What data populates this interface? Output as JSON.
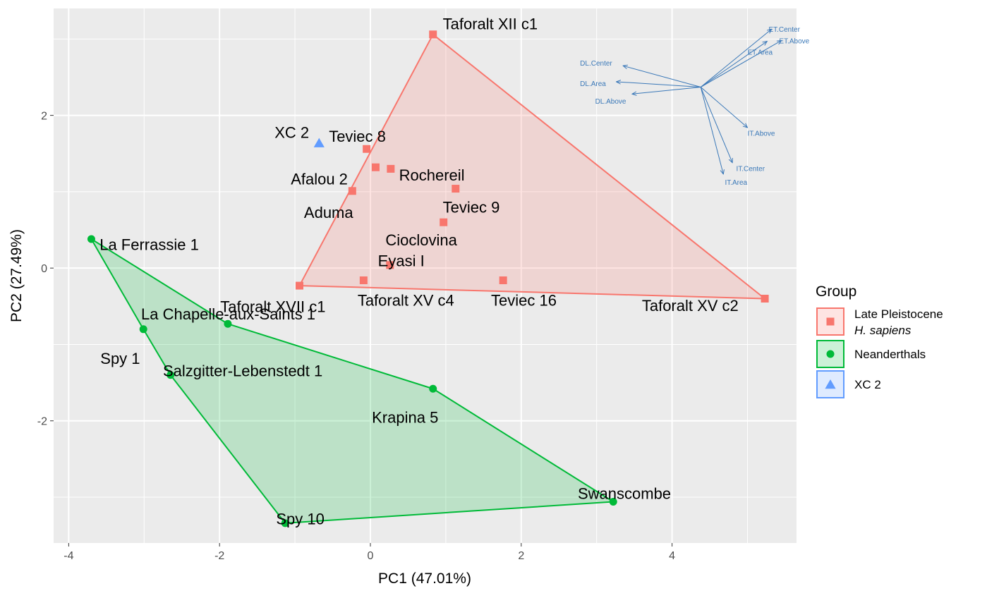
{
  "chart_data": {
    "type": "scatter",
    "title": "",
    "xlabel": "PC1 (47.01%)",
    "ylabel": "PC2 (27.49%)",
    "xlim": [
      -4.2,
      5.65
    ],
    "ylim": [
      -3.6,
      3.4
    ],
    "x_ticks": [
      -4,
      -2,
      0,
      2,
      4
    ],
    "x_tick_labels": [
      "-4",
      "-2",
      "0",
      "2",
      "4"
    ],
    "y_ticks": [
      -2,
      0,
      2
    ],
    "y_tick_labels": [
      "-2",
      "0",
      "2"
    ],
    "grid": true,
    "legend_position": "right",
    "colors": {
      "panel": "#ebebeb",
      "grid": "#ffffff",
      "sapiens": "#f8766d",
      "neanderthal": "#00ba38",
      "xc2": "#619cff",
      "loading": "#3a78b8"
    },
    "legend": {
      "title": "Group",
      "entries": [
        {
          "group": "sapiens",
          "line1": "Late Pleistocene",
          "line2": "H. sapiens",
          "shape": "square"
        },
        {
          "group": "neanderthal",
          "line1": "Neanderthals",
          "line2": "",
          "shape": "circle"
        },
        {
          "group": "xc2",
          "line1": "XC 2",
          "line2": "",
          "shape": "triangle"
        }
      ]
    },
    "series": [
      {
        "group": "sapiens",
        "shape": "square",
        "points": [
          {
            "x": 0.83,
            "y": 3.06,
            "label": "Taforalt XII c1",
            "lx": 0.96,
            "ly": 3.2,
            "anchor": "start"
          },
          {
            "x": -0.05,
            "y": 1.56,
            "label": "Teviec 8",
            "lx": -0.55,
            "ly": 1.73,
            "anchor": "start"
          },
          {
            "x": 0.07,
            "y": 1.32,
            "label": "",
            "lx": 0,
            "ly": 0,
            "anchor": "start"
          },
          {
            "x": 0.27,
            "y": 1.3,
            "label": "Rochereil",
            "lx": 0.38,
            "ly": 1.22,
            "anchor": "start"
          },
          {
            "x": -0.24,
            "y": 1.01,
            "label": "Afalou 2",
            "lx": -0.3,
            "ly": 1.17,
            "anchor": "end"
          },
          {
            "x": 1.13,
            "y": 1.04,
            "label": "Teviec 9",
            "lx": 0.96,
            "ly": 0.8,
            "anchor": "start"
          },
          {
            "x": 0.97,
            "y": 0.6,
            "label": "Cioclovina",
            "lx": 0.2,
            "ly": 0.37,
            "anchor": "start"
          },
          {
            "x": 0.26,
            "y": 0.04,
            "label": "Eyasi I",
            "lx": 0.1,
            "ly": 0.1,
            "anchor": "start"
          },
          {
            "x": -0.09,
            "y": -0.16,
            "label": "Taforalt XV c4",
            "lx": -0.17,
            "ly": -0.42,
            "anchor": "start"
          },
          {
            "x": 1.76,
            "y": -0.16,
            "label": "Teviec 16",
            "lx": 1.6,
            "ly": -0.42,
            "anchor": "start"
          },
          {
            "x": 5.23,
            "y": -0.4,
            "label": "Taforalt XV c2",
            "lx": 3.6,
            "ly": -0.49,
            "anchor": "start"
          },
          {
            "x": -0.94,
            "y": -0.23,
            "label": "Aduma",
            "lx": -0.88,
            "ly": 0.73,
            "anchor": "start"
          }
        ]
      },
      {
        "group": "neanderthal",
        "shape": "circle",
        "points": [
          {
            "x": -3.7,
            "y": 0.38,
            "label": "La Ferrassie 1",
            "lx": -3.59,
            "ly": 0.31,
            "anchor": "start"
          },
          {
            "x": -1.89,
            "y": -0.73,
            "label": "La Chapelle-aux-Saints 1",
            "lx": -3.04,
            "ly": -0.6,
            "anchor": "start"
          },
          {
            "x": -3.01,
            "y": -0.8,
            "label": "Spy 1",
            "lx": -3.58,
            "ly": -1.18,
            "anchor": "start"
          },
          {
            "x": -2.65,
            "y": -1.4,
            "label": "Salzgitter-Lebenstedt 1",
            "lx": -2.75,
            "ly": -1.34,
            "anchor": "start"
          },
          {
            "x": 0.83,
            "y": -1.58,
            "label": "Krapina 5",
            "lx": 0.02,
            "ly": -1.95,
            "anchor": "start"
          },
          {
            "x": 3.22,
            "y": -3.06,
            "label": "Swanscombe",
            "lx": 2.75,
            "ly": -2.95,
            "anchor": "start"
          },
          {
            "x": -1.13,
            "y": -3.34,
            "label": "Spy 10",
            "lx": -1.25,
            "ly": -3.28,
            "anchor": "start"
          }
        ]
      },
      {
        "group": "xc2",
        "shape": "triangle",
        "points": [
          {
            "x": -0.68,
            "y": 1.63,
            "label": "XC 2",
            "lx": -1.27,
            "ly": 1.78,
            "anchor": "start"
          }
        ]
      }
    ],
    "extra_labels": [
      {
        "text": "Taforalt XVII c1",
        "x": -1.99,
        "y": -0.5,
        "anchor": "start"
      }
    ],
    "hulls": [
      {
        "group": "sapiens",
        "vertices": [
          [
            0.83,
            3.06
          ],
          [
            5.23,
            -0.4
          ],
          [
            -0.94,
            -0.23
          ]
        ]
      },
      {
        "group": "neanderthal",
        "vertices": [
          [
            -3.7,
            0.38
          ],
          [
            -1.89,
            -0.73
          ],
          [
            0.83,
            -1.58
          ],
          [
            3.22,
            -3.06
          ],
          [
            -1.13,
            -3.34
          ],
          [
            -2.65,
            -1.4
          ],
          [
            -3.01,
            -0.8
          ]
        ]
      }
    ],
    "loadings": {
      "origin": [
        4.38,
        2.37
      ],
      "vectors": [
        {
          "label": "ET.Center",
          "x": 5.32,
          "y": 3.13,
          "lx": 5.28,
          "ly": 3.13,
          "anchor": "start"
        },
        {
          "label": "ET.Above",
          "x": 5.45,
          "y": 2.98,
          "lx": 5.42,
          "ly": 2.98,
          "anchor": "start"
        },
        {
          "label": "ET.Area",
          "x": 5.26,
          "y": 2.97,
          "lx": 5.0,
          "ly": 2.83,
          "anchor": "start"
        },
        {
          "label": "DL.Center",
          "x": 3.35,
          "y": 2.65,
          "lx": 2.78,
          "ly": 2.69,
          "anchor": "start"
        },
        {
          "label": "DL.Area",
          "x": 3.26,
          "y": 2.44,
          "lx": 2.78,
          "ly": 2.42,
          "anchor": "start"
        },
        {
          "label": "DL.Above",
          "x": 3.47,
          "y": 2.28,
          "lx": 2.98,
          "ly": 2.19,
          "anchor": "start"
        },
        {
          "label": "IT.Above",
          "x": 5.0,
          "y": 1.84,
          "lx": 5.0,
          "ly": 1.77,
          "anchor": "start"
        },
        {
          "label": "IT.Center",
          "x": 4.8,
          "y": 1.38,
          "lx": 4.85,
          "ly": 1.31,
          "anchor": "start"
        },
        {
          "label": "IT.Area",
          "x": 4.68,
          "y": 1.23,
          "lx": 4.7,
          "ly": 1.13,
          "anchor": "start"
        }
      ]
    }
  }
}
